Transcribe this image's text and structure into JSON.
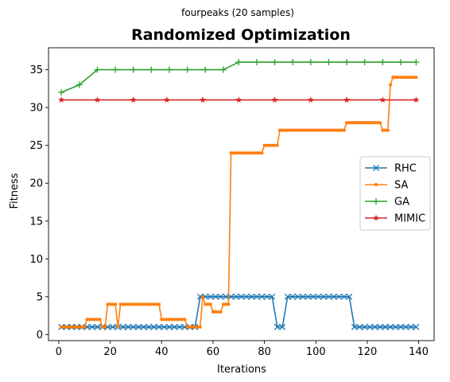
{
  "chart_data": {
    "type": "line",
    "suptitle": "fourpeaks (20 samples)",
    "title": "Randomized Optimization",
    "xlabel": "Iterations",
    "ylabel": "Fitness",
    "xlim": [
      -4,
      146
    ],
    "ylim": [
      -0.8,
      37.9
    ],
    "xticks": [
      0,
      20,
      40,
      60,
      80,
      100,
      120,
      140
    ],
    "yticks": [
      0,
      5,
      10,
      15,
      20,
      25,
      30,
      35
    ],
    "grid": false,
    "legend": "center-right",
    "series": [
      {
        "name": "RHC",
        "color": "#1f77b4",
        "marker": "x",
        "x": [
          1,
          3,
          5,
          7,
          9,
          11,
          13,
          15,
          17,
          19,
          21,
          23,
          25,
          27,
          29,
          31,
          33,
          35,
          37,
          39,
          41,
          43,
          45,
          47,
          49,
          51,
          53,
          55,
          57,
          59,
          61,
          63,
          65,
          67,
          69,
          71,
          73,
          75,
          77,
          79,
          81,
          83,
          85,
          87,
          89,
          91,
          93,
          95,
          97,
          99,
          101,
          103,
          105,
          107,
          109,
          111,
          113,
          115,
          117,
          119,
          121,
          123,
          125,
          127,
          129,
          131,
          133,
          135,
          137,
          139
        ],
        "y": [
          1,
          1,
          1,
          1,
          1,
          1,
          1,
          1,
          1,
          1,
          1,
          1,
          1,
          1,
          1,
          1,
          1,
          1,
          1,
          1,
          1,
          1,
          1,
          1,
          1,
          1,
          1,
          5,
          5,
          5,
          5,
          5,
          5,
          5,
          5,
          5,
          5,
          5,
          5,
          5,
          5,
          5,
          1,
          1,
          5,
          5,
          5,
          5,
          5,
          5,
          5,
          5,
          5,
          5,
          5,
          5,
          5,
          1,
          1,
          1,
          1,
          1,
          1,
          1,
          1,
          1,
          1,
          1,
          1,
          1
        ]
      },
      {
        "name": "SA",
        "color": "#ff7f0e",
        "marker": "dot",
        "x": [
          1,
          2,
          3,
          4,
          5,
          6,
          7,
          8,
          9,
          10,
          11,
          12,
          13,
          14,
          15,
          16,
          17,
          18,
          19,
          20,
          21,
          22,
          23,
          24,
          25,
          26,
          27,
          28,
          29,
          30,
          31,
          32,
          33,
          34,
          35,
          36,
          37,
          38,
          39,
          40,
          41,
          42,
          43,
          44,
          45,
          46,
          47,
          48,
          49,
          50,
          51,
          52,
          53,
          54,
          55,
          56,
          57,
          58,
          59,
          60,
          61,
          62,
          63,
          64,
          65,
          66,
          67,
          68,
          69,
          70,
          71,
          72,
          73,
          74,
          75,
          76,
          77,
          78,
          79,
          80,
          81,
          82,
          83,
          84,
          85,
          86,
          87,
          88,
          89,
          90,
          91,
          92,
          93,
          94,
          95,
          96,
          97,
          98,
          99,
          100,
          101,
          102,
          103,
          104,
          105,
          106,
          107,
          108,
          109,
          110,
          111,
          112,
          113,
          114,
          115,
          116,
          117,
          118,
          119,
          120,
          121,
          122,
          123,
          124,
          125,
          126,
          127,
          128,
          129,
          130,
          131,
          132,
          133,
          134,
          135,
          136,
          137,
          138,
          139
        ],
        "y": [
          1,
          1,
          1,
          1,
          1,
          1,
          1,
          1,
          1,
          1,
          2,
          2,
          2,
          2,
          2,
          2,
          1,
          1,
          4,
          4,
          4,
          4,
          1,
          4,
          4,
          4,
          4,
          4,
          4,
          4,
          4,
          4,
          4,
          4,
          4,
          4,
          4,
          4,
          4,
          2,
          2,
          2,
          2,
          2,
          2,
          2,
          2,
          2,
          2,
          1,
          1,
          1,
          1,
          1,
          1,
          5,
          4,
          4,
          4,
          3,
          3,
          3,
          3,
          4,
          4,
          4,
          24,
          24,
          24,
          24,
          24,
          24,
          24,
          24,
          24,
          24,
          24,
          24,
          24,
          25,
          25,
          25,
          25,
          25,
          25,
          27,
          27,
          27,
          27,
          27,
          27,
          27,
          27,
          27,
          27,
          27,
          27,
          27,
          27,
          27,
          27,
          27,
          27,
          27,
          27,
          27,
          27,
          27,
          27,
          27,
          27,
          28,
          28,
          28,
          28,
          28,
          28,
          28,
          28,
          28,
          28,
          28,
          28,
          28,
          28,
          27,
          27,
          27,
          33,
          34,
          34,
          34,
          34,
          34,
          34,
          34,
          34,
          34,
          34
        ]
      },
      {
        "name": "GA",
        "color": "#2ca02c",
        "marker": "plus",
        "x": [
          1,
          8,
          15,
          22,
          29,
          36,
          43,
          50,
          57,
          64,
          70,
          77,
          84,
          91,
          98,
          105,
          112,
          119,
          126,
          133,
          139
        ],
        "y": [
          32,
          33,
          35,
          35,
          35,
          35,
          35,
          35,
          35,
          35,
          36,
          36,
          36,
          36,
          36,
          36,
          36,
          36,
          36,
          36,
          36
        ]
      },
      {
        "name": "MIMIC",
        "color": "#d62728",
        "marker": "star",
        "x": [
          1,
          15,
          29,
          42,
          56,
          70,
          84,
          98,
          112,
          126,
          139
        ],
        "y": [
          31,
          31,
          31,
          31,
          31,
          31,
          31,
          31,
          31,
          31,
          31
        ]
      }
    ]
  }
}
